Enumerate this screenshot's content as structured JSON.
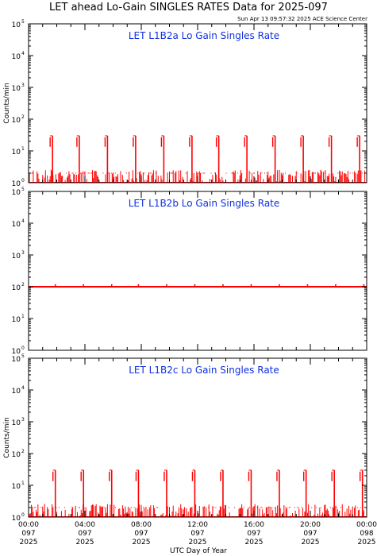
{
  "header": {
    "title": "LET ahead Lo-Gain SINGLES RATES Data for 2025-097",
    "timestamp": "Sun Apr 13 09:57:32 2025 ACE Science Center"
  },
  "x_axis": {
    "label": "UTC Day of Year",
    "ticks": [
      {
        "time": "00:00",
        "doy": "097",
        "year": "2025"
      },
      {
        "time": "04:00",
        "doy": "097",
        "year": "2025"
      },
      {
        "time": "08:00",
        "doy": "097",
        "year": "2025"
      },
      {
        "time": "12:00",
        "doy": "097",
        "year": "2025"
      },
      {
        "time": "16:00",
        "doy": "097",
        "year": "2025"
      },
      {
        "time": "20:00",
        "doy": "097",
        "year": "2025"
      },
      {
        "time": "00:00",
        "doy": "098",
        "year": "2025"
      }
    ]
  },
  "colors": {
    "data": "#ff0000",
    "panel_title": "#1030e0",
    "axis": "#000000"
  },
  "chart_data": [
    {
      "type": "line",
      "title": "LET L1B2a Lo Gain Singles Rate",
      "ylabel": "Counts/min",
      "yscale": "log",
      "ylim": [
        1,
        100000
      ],
      "xlim_hours": [
        0,
        24
      ],
      "y_ticks": [
        {
          "base": "10",
          "exp": "0"
        },
        {
          "base": "10",
          "exp": "1"
        },
        {
          "base": "10",
          "exp": "2"
        },
        {
          "base": "10",
          "exp": "3"
        },
        {
          "base": "10",
          "exp": "4"
        },
        {
          "base": "10",
          "exp": "5"
        }
      ],
      "baseline": 1.5,
      "spikes": [
        {
          "hour": 1.7,
          "value": 30
        },
        {
          "hour": 3.6,
          "value": 30
        },
        {
          "hour": 5.6,
          "value": 30
        },
        {
          "hour": 7.6,
          "value": 30
        },
        {
          "hour": 9.6,
          "value": 30
        },
        {
          "hour": 11.6,
          "value": 30
        },
        {
          "hour": 13.5,
          "value": 30
        },
        {
          "hour": 15.5,
          "value": 30
        },
        {
          "hour": 17.5,
          "value": 30
        },
        {
          "hour": 19.5,
          "value": 30
        },
        {
          "hour": 21.5,
          "value": 30
        },
        {
          "hour": 23.5,
          "value": 30
        }
      ]
    },
    {
      "type": "line",
      "title": "LET L1B2b Lo Gain Singles Rate",
      "ylabel": "",
      "yscale": "log",
      "ylim": [
        1,
        100000
      ],
      "xlim_hours": [
        0,
        24
      ],
      "y_ticks": [
        {
          "base": "10",
          "exp": "0"
        },
        {
          "base": "10",
          "exp": "1"
        },
        {
          "base": "10",
          "exp": "2"
        },
        {
          "base": "10",
          "exp": "3"
        },
        {
          "base": "10",
          "exp": "4"
        },
        {
          "base": "10",
          "exp": "5"
        }
      ],
      "baseline": 100,
      "spikes": [
        {
          "hour": 1.9,
          "value": 120
        },
        {
          "hour": 3.9,
          "value": 120
        },
        {
          "hour": 5.9,
          "value": 120
        },
        {
          "hour": 7.8,
          "value": 120
        },
        {
          "hour": 9.8,
          "value": 120
        },
        {
          "hour": 11.8,
          "value": 120
        },
        {
          "hour": 13.8,
          "value": 120
        },
        {
          "hour": 15.8,
          "value": 120
        },
        {
          "hour": 17.8,
          "value": 120
        },
        {
          "hour": 19.8,
          "value": 120
        },
        {
          "hour": 21.8,
          "value": 120
        },
        {
          "hour": 23.8,
          "value": 120
        }
      ]
    },
    {
      "type": "line",
      "title": "LET L1B2c Lo Gain Singles Rate",
      "ylabel": "Counts/min",
      "yscale": "log",
      "ylim": [
        1,
        100000
      ],
      "xlim_hours": [
        0,
        24
      ],
      "y_ticks": [
        {
          "base": "10",
          "exp": "0"
        },
        {
          "base": "10",
          "exp": "1"
        },
        {
          "base": "10",
          "exp": "2"
        },
        {
          "base": "10",
          "exp": "3"
        },
        {
          "base": "10",
          "exp": "4"
        },
        {
          "base": "10",
          "exp": "5"
        }
      ],
      "baseline": 1.5,
      "spikes": [
        {
          "hour": 1.9,
          "value": 30
        },
        {
          "hour": 3.9,
          "value": 30
        },
        {
          "hour": 5.9,
          "value": 30
        },
        {
          "hour": 7.8,
          "value": 30
        },
        {
          "hour": 9.8,
          "value": 30
        },
        {
          "hour": 11.8,
          "value": 30
        },
        {
          "hour": 13.8,
          "value": 30
        },
        {
          "hour": 15.8,
          "value": 30
        },
        {
          "hour": 17.8,
          "value": 30
        },
        {
          "hour": 19.7,
          "value": 30
        },
        {
          "hour": 21.7,
          "value": 30
        },
        {
          "hour": 23.7,
          "value": 30
        }
      ]
    }
  ]
}
